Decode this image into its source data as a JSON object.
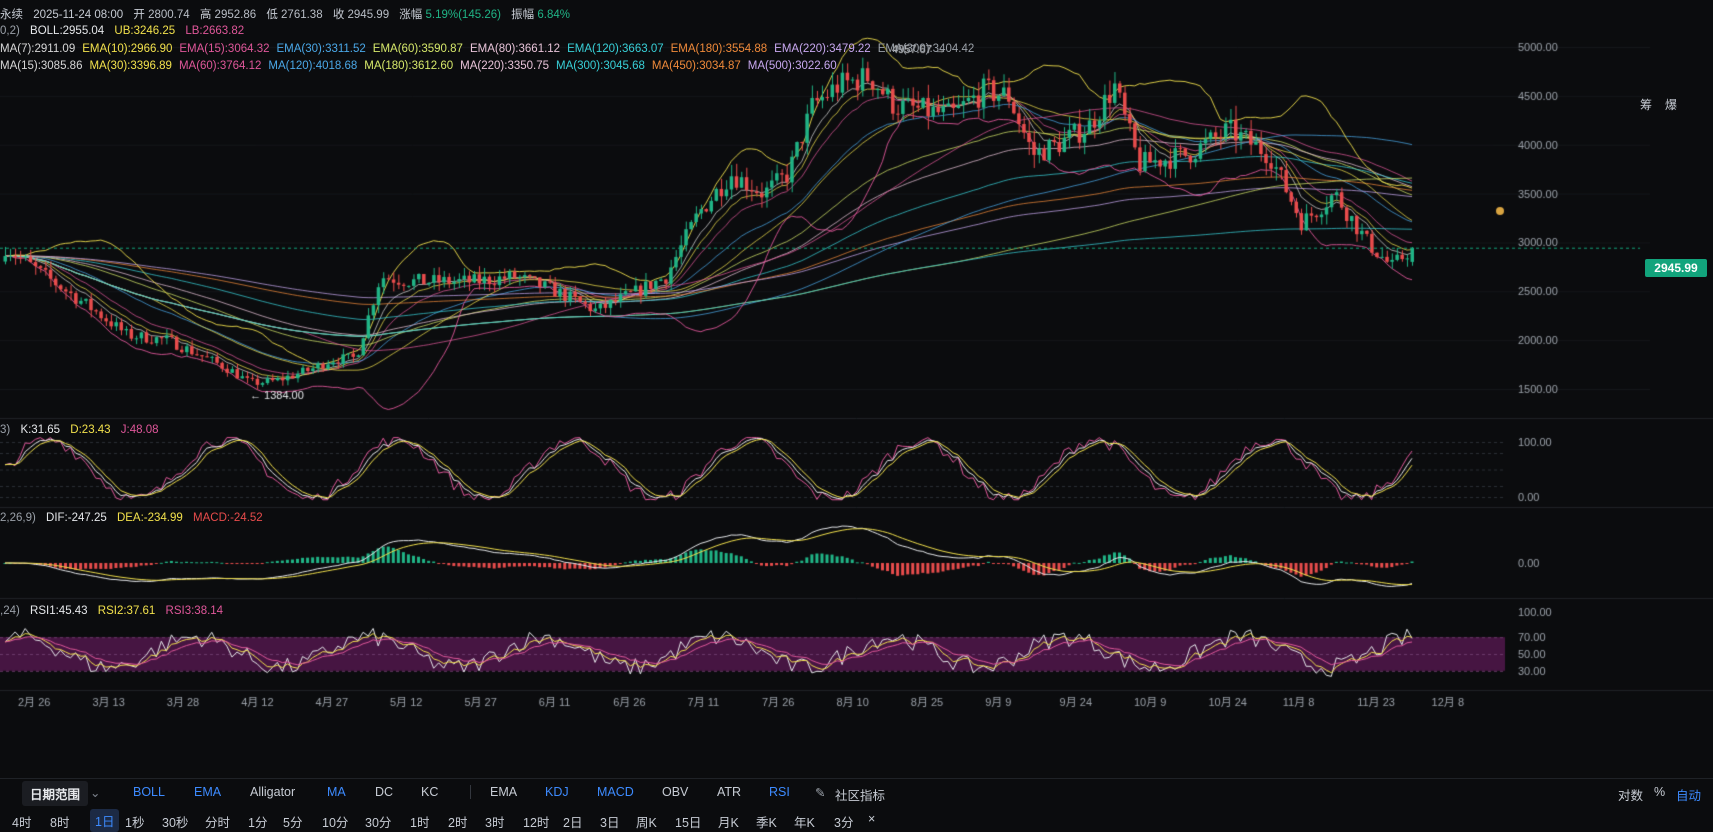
{
  "header": {
    "symbol": "永续",
    "date": "2025-11-24 08:00",
    "open_label": "开",
    "open": "2800.74",
    "high_label": "高",
    "high": "2952.86",
    "low_label": "低",
    "low": "2761.38",
    "close_label": "收",
    "close": "2945.99",
    "change_label": "涨幅",
    "change": "5.19%(145.26)",
    "amplitude_label": "振幅",
    "amplitude": "6.84%"
  },
  "boll": {
    "param": "0,2)",
    "boll": "BOLL:2955.04",
    "ub": "UB:3246.25",
    "lb": "LB:2663.82"
  },
  "ema_line": [
    {
      "text": "MA(7):2911.09",
      "color": "#d7d7d7"
    },
    {
      "text": "EMA(10):2966.90",
      "color": "#f2e14c"
    },
    {
      "text": "EMA(15):3064.32",
      "color": "#e0579a"
    },
    {
      "text": "EMA(30):3311.52",
      "color": "#4aa8e8"
    },
    {
      "text": "EMA(60):3590.87",
      "color": "#d6e86a"
    },
    {
      "text": "EMA(80):3661.12",
      "color": "#e8c3d8"
    },
    {
      "text": "EMA(120):3663.07",
      "color": "#38d0d8"
    },
    {
      "text": "EMA(180):3554.88",
      "color": "#f08a3a"
    },
    {
      "text": "EMA(220):3479.22",
      "color": "#c8a8f0"
    },
    {
      "text": "EMA(300):3404.42",
      "color": "#9aa0a8"
    }
  ],
  "ma_line": [
    {
      "text": "MA(15):3085.86",
      "color": "#d7d7d7"
    },
    {
      "text": "MA(30):3396.89",
      "color": "#f2e14c"
    },
    {
      "text": "MA(60):3764.12",
      "color": "#e0579a"
    },
    {
      "text": "MA(120):4018.68",
      "color": "#4aa8e8"
    },
    {
      "text": "MA(180):3612.60",
      "color": "#d6e86a"
    },
    {
      "text": "MA(220):3350.75",
      "color": "#e8c3d8"
    },
    {
      "text": "MA(300):3045.68",
      "color": "#38d0d8"
    },
    {
      "text": "MA(450):3034.87",
      "color": "#f08a3a"
    },
    {
      "text": "MA(500):3022.60",
      "color": "#c8a8f0"
    }
  ],
  "kdj": {
    "param": "3)",
    "k": "K:31.65",
    "d": "D:23.43",
    "j": "J:48.08"
  },
  "macd": {
    "param": "2,26,9)",
    "dif": "DIF:-247.25",
    "dea": "DEA:-234.99",
    "macd": "MACD:-24.52"
  },
  "rsi": {
    "param": ",24)",
    "rsi1": "RSI1:45.43",
    "rsi2": "RSI2:37.61",
    "rsi3": "RSI3:38.14"
  },
  "annotations": {
    "high": "4957.67",
    "low": "1384.00"
  },
  "current_price": "2945.99",
  "right_axis_labels": {
    "main": [
      "5000.00",
      "4500.00",
      "4000.00",
      "3500.00",
      "3000.00",
      "2500.00",
      "2000.00",
      "1500.00"
    ],
    "kdj": [
      "100.00",
      "0.00"
    ],
    "macd": [
      "0.00"
    ],
    "rsi": [
      "100.00",
      "70.00",
      "50.00",
      "30.00"
    ]
  },
  "right_top_labels": [
    "筹",
    "爆"
  ],
  "x_labels": [
    "2月 26",
    "3月 13",
    "3月 28",
    "4月 12",
    "4月 27",
    "5月 12",
    "5月 27",
    "6月 11",
    "6月 26",
    "7月 11",
    "7月 26",
    "8月 10",
    "8月 25",
    "9月 9",
    "9月 24",
    "10月 9",
    "10月 24",
    "11月 8",
    "11月 23",
    "12月 8"
  ],
  "toolbar": {
    "range": "日期范围",
    "indicators_main": [
      "BOLL",
      "EMA",
      "Alligator",
      "MA",
      "DC",
      "KC"
    ],
    "indicators_sub": [
      "EMA",
      "KDJ",
      "MACD",
      "OBV",
      "ATR",
      "RSI"
    ],
    "community": "社区指标",
    "right": [
      "对数",
      "%",
      "自动"
    ]
  },
  "intervals": [
    "4时",
    "8时",
    "1日",
    "1秒",
    "30秒",
    "分时",
    "1分",
    "5分",
    "10分",
    "30分",
    "1时",
    "2时",
    "3时",
    "12时",
    "2日",
    "3日",
    "周K",
    "15日",
    "月K",
    "季K",
    "年K",
    "3分",
    "×"
  ],
  "colors": {
    "up": "#20b486",
    "down": "#e84c4c",
    "bg": "#0b0c0e"
  },
  "chart_data": {
    "type": "candlestick",
    "ylim": [
      1300,
      5150
    ],
    "annotated_high": 4957.67,
    "annotated_low": 1384.0,
    "last_close": 2945.99
  }
}
